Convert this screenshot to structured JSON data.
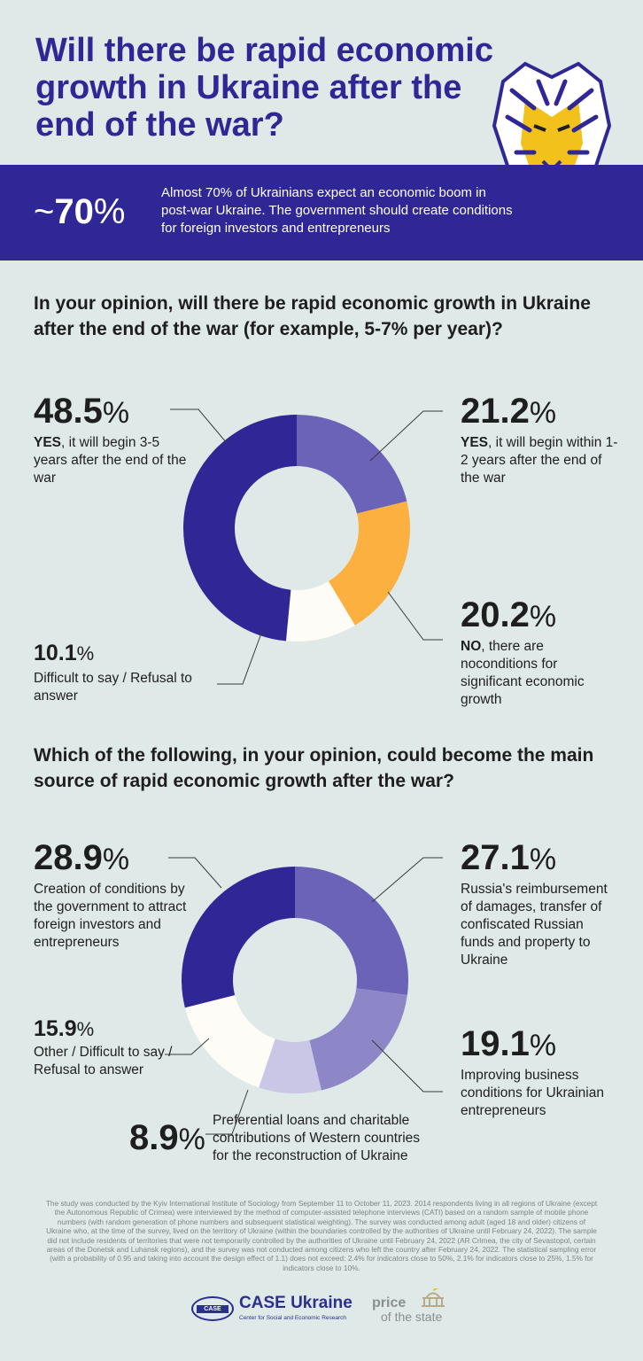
{
  "header": {
    "title": "Will there be rapid economic growth in Ukraine after the end of the war?"
  },
  "banner": {
    "stat_prefix": "~",
    "stat_value": "70",
    "stat_suffix": "%",
    "text": "Almost 70% of Ukrainians expect an economic boom in post-war Ukraine. The government should create conditions for foreign investors and entrepreneurs"
  },
  "colors": {
    "navy": "#2f2796",
    "violet": "#6a63b8",
    "lavender": "#8d87c8",
    "pale_lavender": "#c9c6e6",
    "orange": "#fbb040",
    "cream": "#fdfcf6",
    "background": "#dfe9e8"
  },
  "chart_data": [
    {
      "type": "pie",
      "title": "In your opinion, will there be rapid economic growth in Ukraine after the end of the war (for example, 5-7% per year)?",
      "slices": [
        {
          "value": 21.2,
          "pct_label": "21.2",
          "bold": "YES",
          "text": ", it will begin within 1-2 years after the end of the war",
          "color": "#6a63b8"
        },
        {
          "value": 20.2,
          "pct_label": "20.2",
          "bold": "NO",
          "text": ", there are noconditions for significant economic growth",
          "color": "#fbb040"
        },
        {
          "value": 10.1,
          "pct_label": "10.1",
          "bold": "",
          "text": "Difficult to say / Refusal to answer",
          "color": "#fdfcf6"
        },
        {
          "value": 48.5,
          "pct_label": "48.5",
          "bold": "YES",
          "text": ", it will begin 3-5 years after the end of the war",
          "color": "#2f2796"
        }
      ]
    },
    {
      "type": "pie",
      "title": "Which of the following, in your opinion, could become the main source of rapid economic growth after the war?",
      "slices": [
        {
          "value": 27.1,
          "pct_label": "27.1",
          "bold": "",
          "text": "Russia's reimbursement of damages, transfer of confiscated Russian funds and property to Ukraine",
          "color": "#6a63b8"
        },
        {
          "value": 19.1,
          "pct_label": "19.1",
          "bold": "",
          "text": "Improving business conditions for Ukrainian entrepreneurs",
          "color": "#8d87c8"
        },
        {
          "value": 8.9,
          "pct_label": "8.9",
          "bold": "",
          "text": "Preferential loans and charitable contributions of Western countries for the reconstruction of Ukraine",
          "color": "#c9c6e6"
        },
        {
          "value": 15.9,
          "pct_label": "15.9",
          "bold": "",
          "text": "Other / Difficult to say / Refusal to answer",
          "color": "#fdfcf6"
        },
        {
          "value": 28.9,
          "pct_label": "28.9",
          "bold": "",
          "text": "Creation of conditions by the government to attract foreign investors and entrepreneurs",
          "color": "#2f2796"
        }
      ]
    }
  ],
  "pct_sign": "%",
  "footnote": "The study was conducted by the Kyiv International Institute of Sociology from September 11 to October 11, 2023. 2014 respondents living in all regions of Ukraine (except the Autonomous Republic of Crimea) were interviewed by the method of computer-assisted telephone interviews (CATI) based on a random sample of mobile phone numbers (with random generation of phone numbers and subsequent statistical weighting). The survey was conducted among adult (aged 18 and older) citizens of Ukraine who, at the time of the survey, lived on the territory of Ukraine (within the boundaries controlled by the authorities of Ukraine until February 24, 2022). The sample did not include residents of territories that were not temporarily controlled by the authorities of Ukraine until February 24, 2022 (AR Crimea, the city of Sevastopol, certain areas of the Donetsk and Luhansk regions), and the survey was not conducted among citizens who left the country after February 24, 2022. The statistical sampling error (with a probability of 0.95 and taking into account the design effect of 1.1) does not exceed: 2.4% for indicators close to 50%, 2.1% for indicators close to 25%, 1.5% for indicators close to 10%.",
  "logos": {
    "case_mark": "CASE",
    "case_name": "CASE Ukraine",
    "case_sub": "Center for Social and Economic Research",
    "price_line1": "price",
    "price_line2": "of the state"
  }
}
